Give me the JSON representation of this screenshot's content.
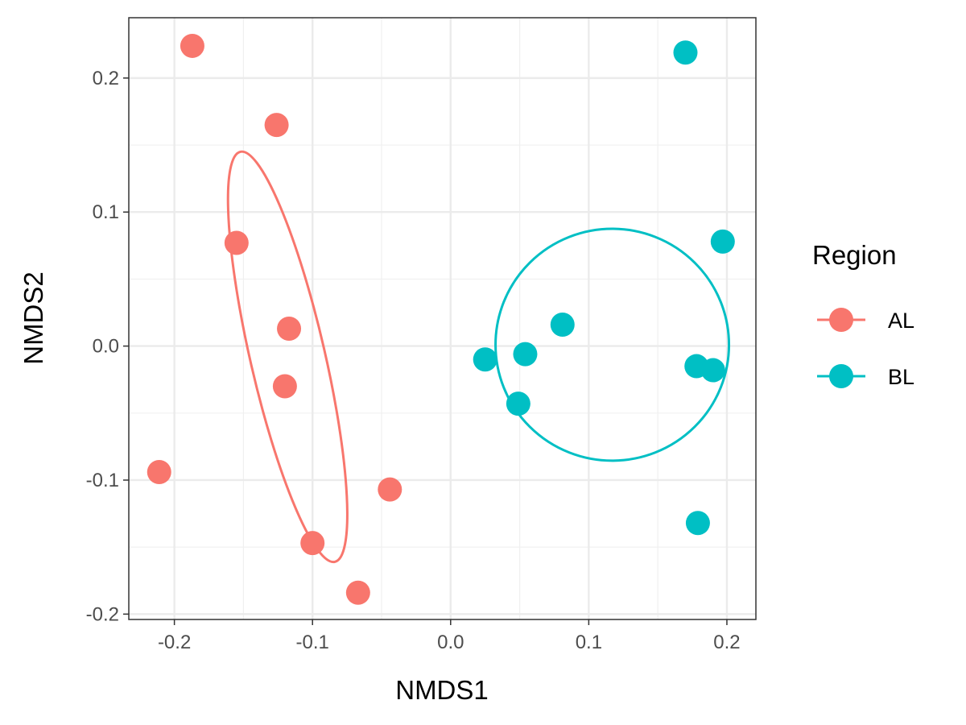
{
  "chart_data": {
    "type": "scatter",
    "xlabel": "NMDS1",
    "ylabel": "NMDS2",
    "xlim": [
      -0.233,
      0.221
    ],
    "ylim": [
      -0.204,
      0.245
    ],
    "x_ticks": [
      -0.2,
      -0.1,
      0.0,
      0.1,
      0.2
    ],
    "y_ticks": [
      -0.2,
      -0.1,
      0.0,
      0.1,
      0.2
    ],
    "x_tick_labels": [
      "-0.2",
      "-0.1",
      "0.0",
      "0.1",
      "0.2"
    ],
    "y_tick_labels": [
      "-0.2",
      "-0.1",
      "0.0",
      "0.1",
      "0.2"
    ],
    "grid": true,
    "legend": {
      "title": "Region",
      "placement": "right"
    },
    "series": [
      {
        "name": "AL",
        "color": "#F8766D",
        "points": [
          {
            "x": -0.187,
            "y": 0.224
          },
          {
            "x": -0.126,
            "y": 0.165
          },
          {
            "x": -0.155,
            "y": 0.077
          },
          {
            "x": -0.117,
            "y": 0.013
          },
          {
            "x": -0.12,
            "y": -0.03
          },
          {
            "x": -0.211,
            "y": -0.094
          },
          {
            "x": -0.044,
            "y": -0.107
          },
          {
            "x": -0.1,
            "y": -0.147
          },
          {
            "x": -0.067,
            "y": -0.184
          }
        ],
        "ellipse": {
          "cx": -0.118,
          "cy": -0.008,
          "rx": 0.027,
          "ry": 0.157,
          "angle_deg": -13
        }
      },
      {
        "name": "BL",
        "color": "#00BFC4",
        "points": [
          {
            "x": 0.17,
            "y": 0.219
          },
          {
            "x": 0.197,
            "y": 0.078
          },
          {
            "x": 0.081,
            "y": 0.016
          },
          {
            "x": 0.054,
            "y": -0.006
          },
          {
            "x": 0.025,
            "y": -0.01
          },
          {
            "x": 0.178,
            "y": -0.015
          },
          {
            "x": 0.19,
            "y": -0.018
          },
          {
            "x": 0.049,
            "y": -0.043
          },
          {
            "x": 0.179,
            "y": -0.132
          }
        ],
        "ellipse": {
          "cx": 0.117,
          "cy": 0.001,
          "rx": 0.0845,
          "ry": 0.0865,
          "angle_deg": 0
        }
      }
    ]
  }
}
